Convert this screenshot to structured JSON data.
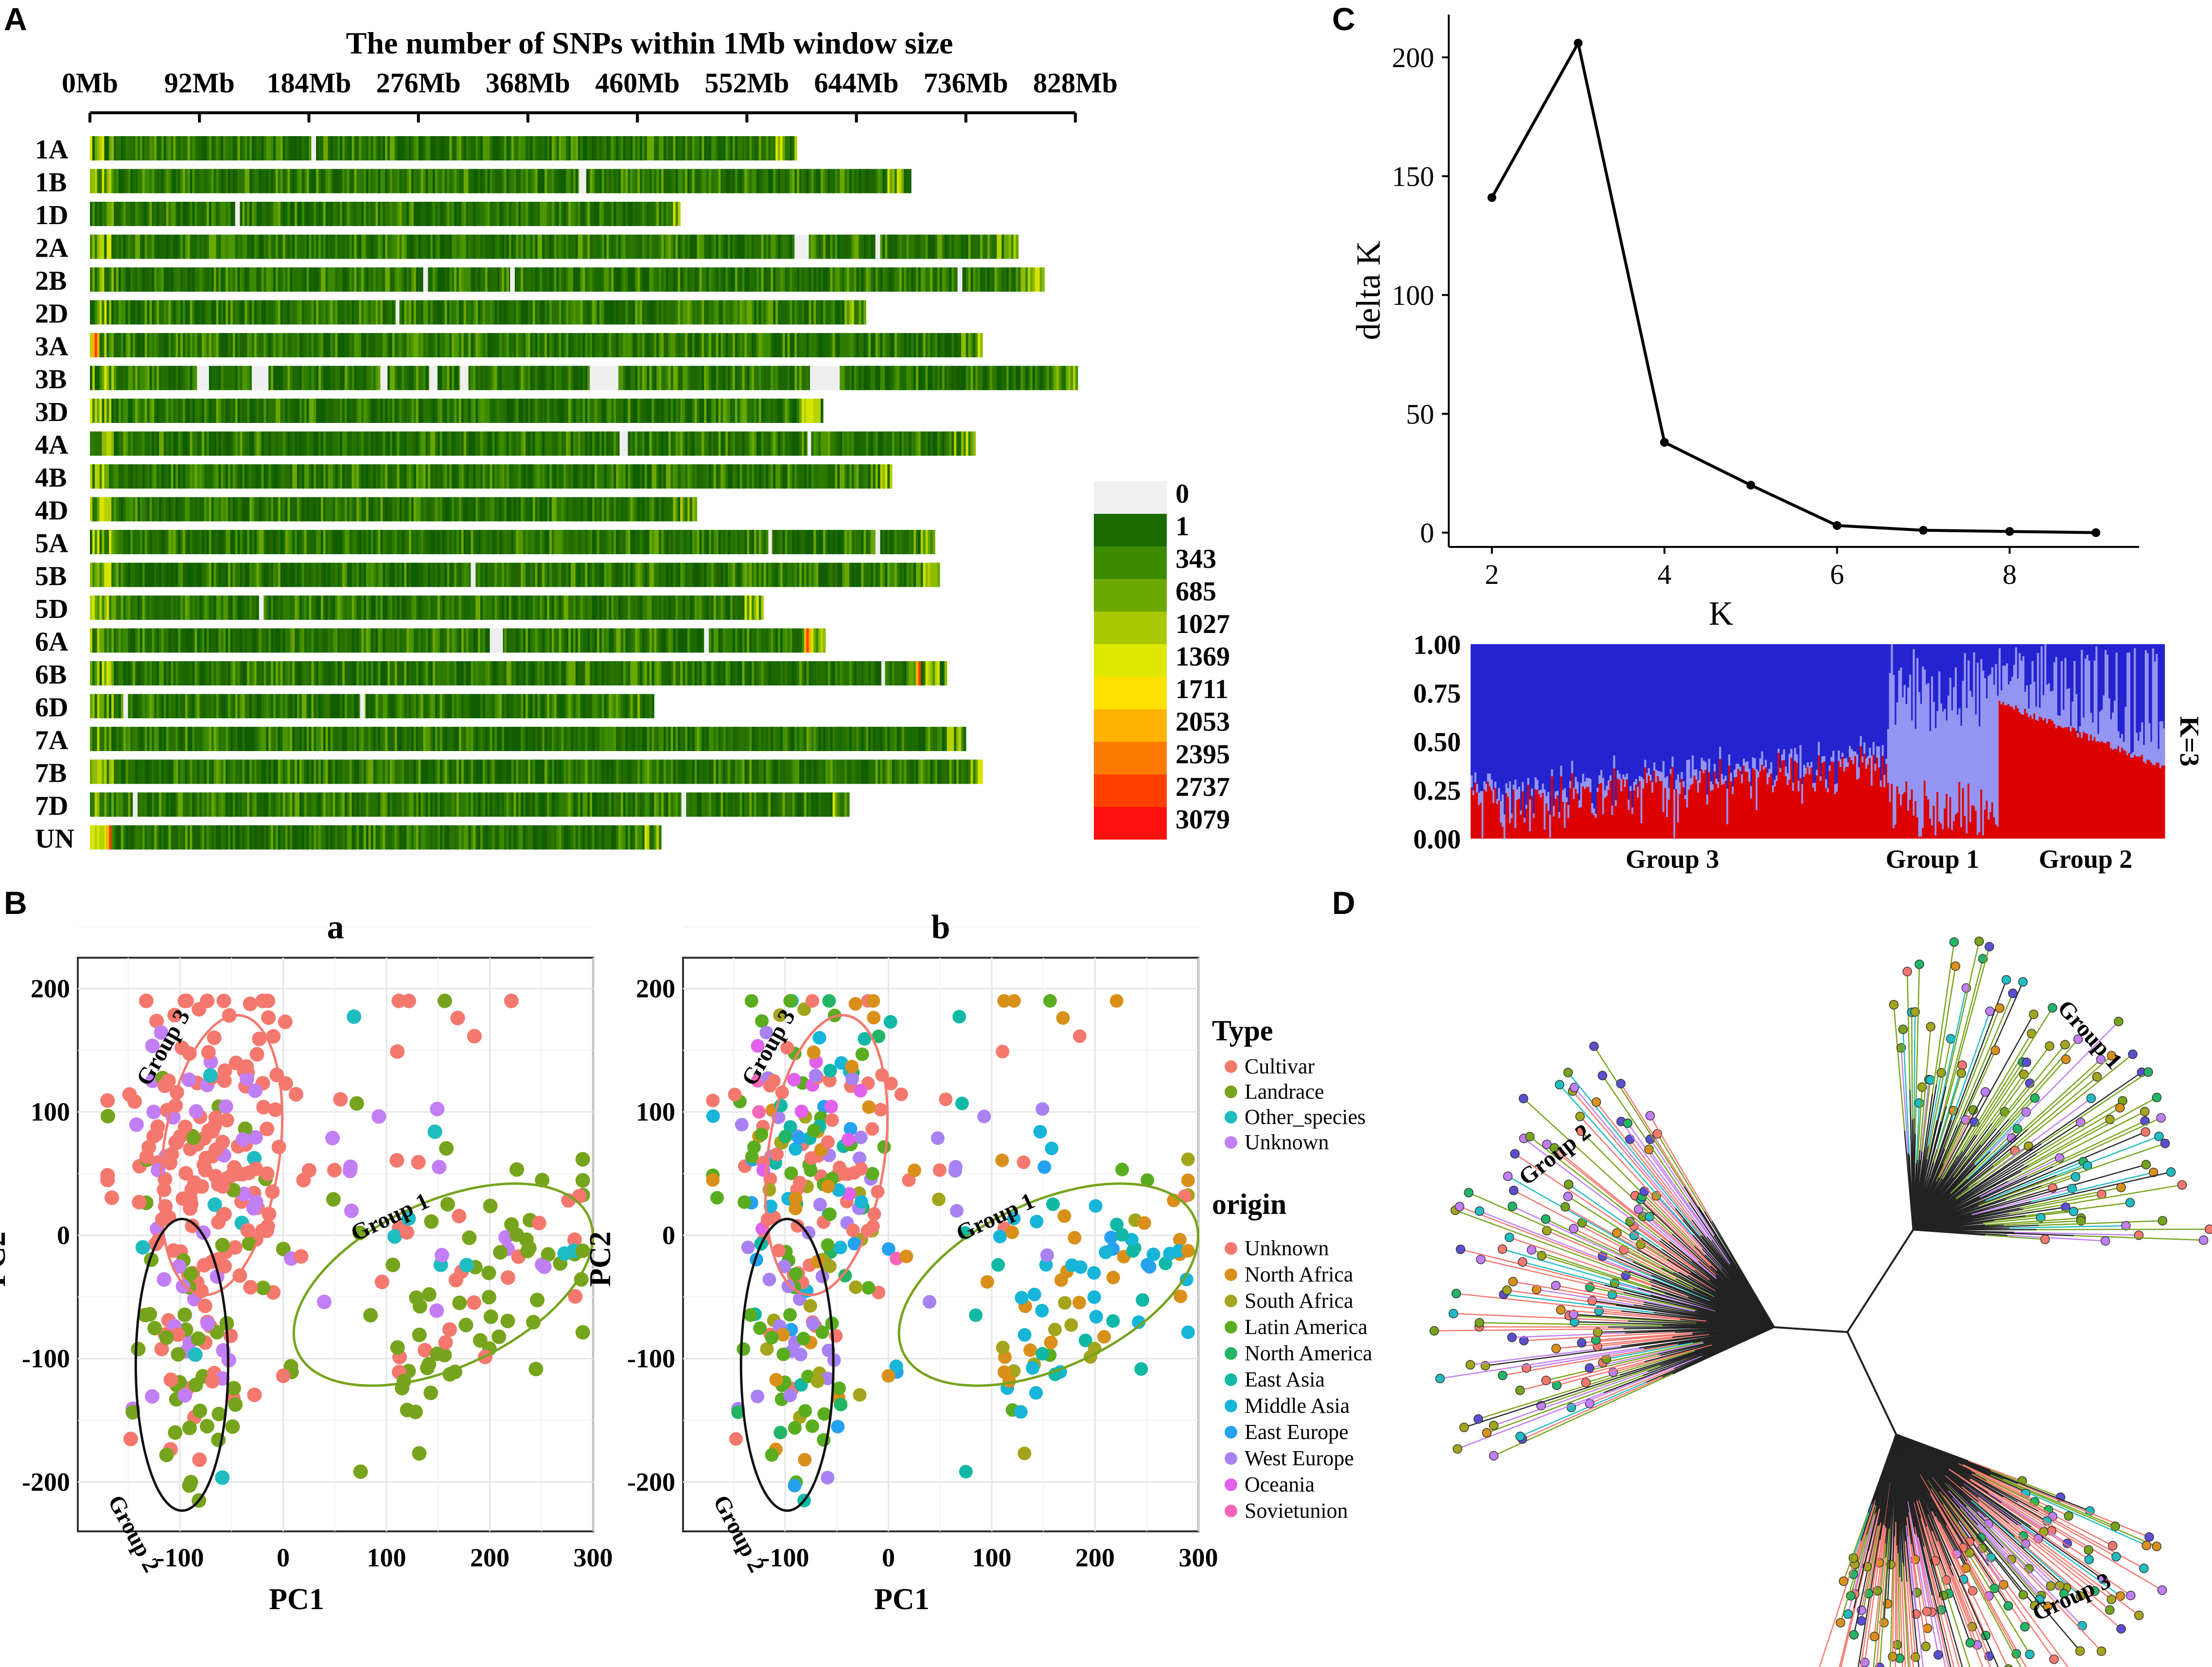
{
  "panel_labels": {
    "A": "A",
    "B": "B",
    "C": "C",
    "D": "D"
  },
  "panel_A": {
    "title": "The number of SNPs within 1Mb window size",
    "axis_ticks": [
      "0Mb",
      "92Mb",
      "184Mb",
      "276Mb",
      "368Mb",
      "460Mb",
      "552Mb",
      "644Mb",
      "736Mb",
      "828Mb"
    ],
    "chromosomes": [
      {
        "name": "1A",
        "length": 594,
        "gaps": [
          [
            186,
            190
          ]
        ],
        "hot": []
      },
      {
        "name": "1B",
        "length": 689,
        "gaps": [
          [
            411,
            417
          ]
        ],
        "hot": []
      },
      {
        "name": "1D",
        "length": 495,
        "gaps": [
          [
            122,
            126
          ]
        ],
        "hot": []
      },
      {
        "name": "2A",
        "length": 780,
        "gaps": [
          [
            592,
            604
          ],
          [
            660,
            664
          ]
        ],
        "hot": []
      },
      {
        "name": "2B",
        "length": 801,
        "gaps": [
          [
            280,
            284
          ],
          [
            353,
            357
          ],
          [
            729,
            733
          ]
        ],
        "hot": []
      },
      {
        "name": "2D",
        "length": 651,
        "gaps": [
          [
            257,
            260
          ]
        ],
        "hot": []
      },
      {
        "name": "3A",
        "length": 750,
        "gaps": [],
        "hot": [
          [
            2,
            8
          ]
        ]
      },
      {
        "name": "3B",
        "length": 830,
        "gaps": [
          [
            90,
            100
          ],
          [
            136,
            150
          ],
          [
            244,
            250
          ],
          [
            285,
            292
          ],
          [
            311,
            318
          ],
          [
            420,
            444
          ],
          [
            605,
            630
          ]
        ],
        "hot": []
      },
      {
        "name": "3D",
        "length": 615,
        "gaps": [],
        "hot": []
      },
      {
        "name": "4A",
        "length": 744,
        "gaps": [
          [
            445,
            452
          ],
          [
            603,
            606
          ]
        ],
        "hot": []
      },
      {
        "name": "4B",
        "length": 673,
        "gaps": [],
        "hot": []
      },
      {
        "name": "4D",
        "length": 509,
        "gaps": [],
        "hot": []
      },
      {
        "name": "5A",
        "length": 709,
        "gaps": [
          [
            570,
            573
          ],
          [
            660,
            664
          ]
        ],
        "hot": []
      },
      {
        "name": "5B",
        "length": 713,
        "gaps": [
          [
            320,
            324
          ]
        ],
        "hot": []
      },
      {
        "name": "5D",
        "length": 566,
        "gaps": [
          [
            142,
            146
          ]
        ],
        "hot": []
      },
      {
        "name": "6A",
        "length": 618,
        "gaps": [
          [
            336,
            347
          ],
          [
            516,
            520
          ]
        ],
        "hot": [
          [
            600,
            606
          ]
        ]
      },
      {
        "name": "6B",
        "length": 720,
        "gaps": [
          [
            665,
            668
          ]
        ],
        "hot": [
          [
            694,
            698
          ]
        ]
      },
      {
        "name": "6D",
        "length": 473,
        "gaps": [
          [
            28,
            32
          ],
          [
            227,
            231
          ]
        ],
        "hot": []
      },
      {
        "name": "7A",
        "length": 736,
        "gaps": [],
        "hot": []
      },
      {
        "name": "7B",
        "length": 750,
        "gaps": [],
        "hot": []
      },
      {
        "name": "7D",
        "length": 638,
        "gaps": [
          [
            36,
            40
          ],
          [
            497,
            501
          ]
        ],
        "hot": []
      },
      {
        "name": "UN",
        "length": 480,
        "gaps": [],
        "hot": [
          [
            14,
            18
          ]
        ]
      }
    ],
    "legend": [
      {
        "label": "0",
        "color": "#f0f0f0"
      },
      {
        "label": "1",
        "color": "#1a6a00"
      },
      {
        "label": "343",
        "color": "#3b8a00"
      },
      {
        "label": "685",
        "color": "#6aa800"
      },
      {
        "label": "1027",
        "color": "#a8c800"
      },
      {
        "label": "1369",
        "color": "#dfe800"
      },
      {
        "label": "1711",
        "color": "#ffe000"
      },
      {
        "label": "2053",
        "color": "#ffb300"
      },
      {
        "label": "2395",
        "color": "#ff7a00"
      },
      {
        "label": "2737",
        "color": "#ff4000"
      },
      {
        "label": "3079",
        "color": "#ff1010"
      }
    ]
  },
  "panel_B": {
    "subplot_a_title": "a",
    "subplot_b_title": "b",
    "xlabel": "PC1",
    "ylabel": "PC2",
    "x_ticks": [
      "-100",
      "0",
      "100",
      "200",
      "300"
    ],
    "y_ticks": [
      "200",
      "100",
      "0",
      "-100",
      "-200"
    ],
    "group_labels": {
      "g1": "Group 1",
      "g2": "Group 2",
      "g3": "Group 3"
    },
    "legend_type_title": "Type",
    "legend_type": [
      {
        "label": "Cultivar",
        "color": "#f4786e"
      },
      {
        "label": "Landrace",
        "color": "#76a41c"
      },
      {
        "label": "Other_species",
        "color": "#1fbcc2"
      },
      {
        "label": "Unknown",
        "color": "#c27ef4"
      }
    ],
    "legend_origin_title": "origin",
    "legend_origin": [
      {
        "label": "Unknown",
        "color": "#f4786e"
      },
      {
        "label": "North Africa",
        "color": "#d9901a"
      },
      {
        "label": "South Africa",
        "color": "#a3a51c"
      },
      {
        "label": "Latin America",
        "color": "#5aad1f"
      },
      {
        "label": "North America",
        "color": "#23b566"
      },
      {
        "label": "East Asia",
        "color": "#12b8a6"
      },
      {
        "label": "Middle Asia",
        "color": "#17b5d8"
      },
      {
        "label": "East Europe",
        "color": "#25a2ef"
      },
      {
        "label": "West Europe",
        "color": "#a882f2"
      },
      {
        "label": "Oceania",
        "color": "#e160ec"
      },
      {
        "label": "Sovietunion",
        "color": "#f566b6"
      }
    ]
  },
  "chart_data": [
    {
      "type": "line",
      "title": "",
      "x": [
        2,
        3,
        4,
        5,
        6,
        7,
        8,
        9
      ],
      "y": [
        141,
        206,
        38,
        20,
        3,
        1,
        0.5,
        0
      ],
      "xlabel": "K",
      "ylabel": "delta K",
      "xlim": [
        1.5,
        9.5
      ],
      "ylim": [
        -6,
        218
      ],
      "x_ticks": [
        "2",
        "4",
        "6",
        "8"
      ],
      "y_ticks": [
        "0",
        "50",
        "100",
        "150",
        "200"
      ]
    },
    {
      "type": "bar",
      "title": "K=3",
      "y_ticks": [
        "1.00",
        "0.75",
        "0.50",
        "0.25",
        "0.00"
      ],
      "group_labels": [
        "Group 3",
        "Group 1",
        "Group 2"
      ],
      "series": [
        {
          "name": "red",
          "color": "#dd0000"
        },
        {
          "name": "lightblue",
          "color": "#9494f2"
        },
        {
          "name": "blue",
          "color": "#2323d0"
        }
      ]
    }
  ],
  "panel_D": {
    "group_labels": {
      "g1": "Group 1",
      "g2": "Group 2",
      "g3": "Group 3"
    }
  }
}
